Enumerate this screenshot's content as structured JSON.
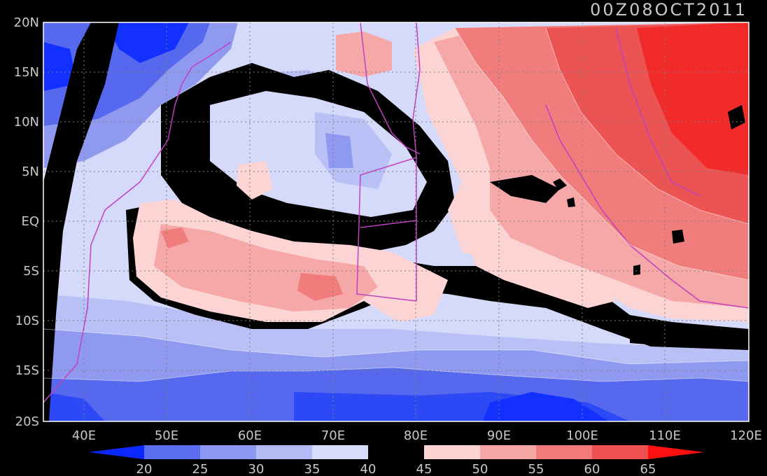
{
  "timestamp": "00Z08OCT2011",
  "lat_labels": [
    "20N",
    "15N",
    "10N",
    "5N",
    "EQ",
    "5S",
    "10S",
    "15S",
    "20S"
  ],
  "lon_labels": [
    "40E",
    "50E",
    "60E",
    "70E",
    "80E",
    "90E",
    "100E",
    "110E",
    "120E"
  ],
  "colorbar": {
    "ticks": [
      "20",
      "25",
      "30",
      "35",
      "40",
      "45",
      "50",
      "55",
      "60",
      "65"
    ],
    "colors": [
      "#0a28ff",
      "#2d48f5",
      "#5a6cef",
      "#8d98f0",
      "#b4bcf5",
      "#d8dcfb",
      "#000000",
      "#fcd2d2",
      "#f7a6a6",
      "#f27a7a",
      "#ee5050",
      "#f42a2a",
      "#ff1010"
    ]
  },
  "palette": {
    "blue_dark": "#1230ff",
    "blue_mid": "#5568ee",
    "blue_light": "#8e99ef",
    "blue_pale": "#b8c0f5",
    "lavender": "#d5d9fa",
    "black": "#000000",
    "pink_pale": "#fcd4d4",
    "pink": "#f6a8a8",
    "red_light": "#f07c7c",
    "red": "#ec5454",
    "red_deep": "#f22a2a",
    "coast": "#c040c0"
  }
}
